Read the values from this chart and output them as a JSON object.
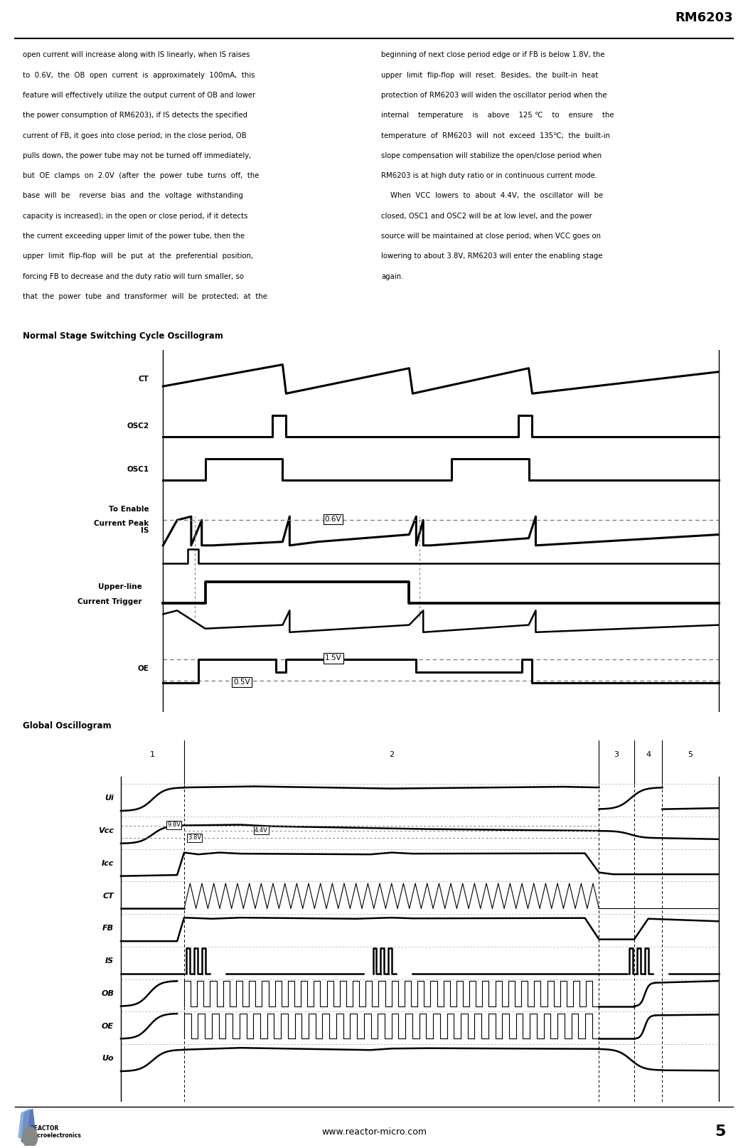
{
  "page_title": "RM6203",
  "page_number": "5",
  "website": "www.reactor-micro.com",
  "text_left": [
    "open current will increase along with IS linearly, when IS raises",
    "to  0.6V,  the  OB  open  current  is  approximately  100mA,  this",
    "feature will effectively utilize the output current of OB and lower",
    "the power consumption of RM6203), if IS detects the specified",
    "current of FB, it goes into close period; in the close period, OB",
    "pulls down, the power tube may not be turned off immediately,",
    "but  OE  clamps  on  2.0V  (after  the  power  tube  turns  off,  the",
    "base  will  be    reverse  bias  and  the  voltage  withstanding",
    "capacity is increased); in the open or close period, if it detects",
    "the current exceeding upper limit of the power tube, then the",
    "upper  limit  flip-flop  will  be  put  at  the  preferential  position,",
    "forcing FB to decrease and the duty ratio will turn smaller, so",
    "that  the  power  tube  and  transformer  will  be  protected;  at  the"
  ],
  "text_right": [
    "beginning of next close period edge or if FB is below 1.8V, the",
    "upper  limit  flip-flop  will  reset.  Besides,  the  built-in  heat",
    "protection of RM6203 will widen the oscillator period when the",
    "internal    temperature    is    above    125 ℃    to    ensure    the",
    "temperature  of  RM6203  will  not  exceed  135℃;  the  built-in",
    "slope compensation will stabilize the open/close period when",
    "RM6203 is at high duty ratio or in continuous current mode.",
    "    When  VCC  lowers  to  about  4.4V,  the  oscillator  will  be",
    "closed, OSC1 and OSC2 will be at low level, and the power",
    "source will be maintained at close period; when VCC goes on",
    "lowering to about 3.8V, RM6203 will enter the enabling stage",
    "again."
  ],
  "section1_title": "Normal Stage Switching Cycle Oscillogram",
  "section2_title": "Global Oscillogram",
  "bg_color": "#ffffff",
  "text_color": "#000000",
  "line_color": "#000000"
}
